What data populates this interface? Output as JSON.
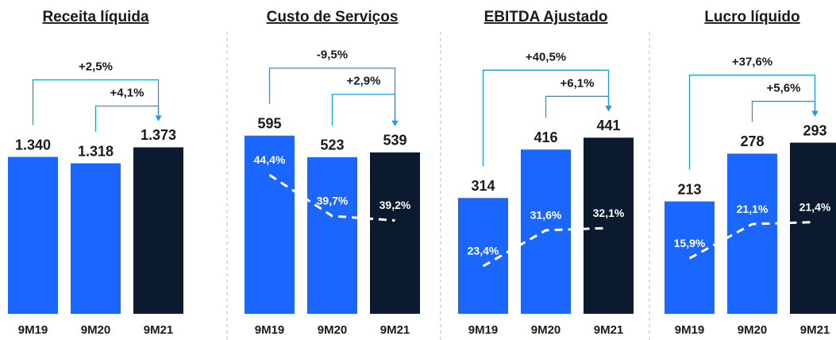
{
  "chart_data": [
    {
      "type": "bar",
      "title": "Receita líquida",
      "categories": [
        "9M19",
        "9M20",
        "9M21"
      ],
      "values": [
        1340,
        1318,
        1373
      ],
      "value_labels": [
        "1.340",
        "1.318",
        "1.373"
      ],
      "colors": [
        "#1a66ff",
        "#1a66ff",
        "#0b1a2e"
      ],
      "ylim": [
        800,
        1470
      ],
      "annotations": [
        "+2,5%",
        "+4,1%"
      ]
    },
    {
      "type": "bar",
      "title": "Custo de Serviços",
      "categories": [
        "9M19",
        "9M20",
        "9M21"
      ],
      "values": [
        595,
        523,
        539
      ],
      "colors": [
        "#1a66ff",
        "#1a66ff",
        "#0b1a2e"
      ],
      "ylim": [
        0,
        650
      ],
      "series": [
        {
          "name": null,
          "color": "#ffffff",
          "axis": "y2",
          "values": [
            44.4,
            39.7,
            39.2
          ],
          "value_labels": [
            "44,4%",
            "39,7%",
            "39,2%"
          ]
        }
      ],
      "y2lim": [
        28.5,
        50.8
      ],
      "annotations": [
        "-9,5%",
        "+2,9%"
      ]
    },
    {
      "type": "bar",
      "title": "EBITDA Ajustado",
      "categories": [
        "9M19",
        "9M20",
        "9M21"
      ],
      "values": [
        314,
        416,
        441
      ],
      "colors": [
        "#1a66ff",
        "#1a66ff",
        "#0b1a2e"
      ],
      "ylim": [
        70,
        480
      ],
      "series": [
        {
          "name": null,
          "color": "#ffffff",
          "axis": "y2",
          "values": [
            23.4,
            31.6,
            32.1
          ],
          "value_labels": [
            "23,4%",
            "31,6%",
            "32,1%"
          ]
        }
      ],
      "y2lim": [
        12.5,
        57
      ],
      "annotations": [
        "+40,5%",
        "+6,1%"
      ]
    },
    {
      "type": "bar",
      "title": "Lucro líquido",
      "categories": [
        "9M19",
        "9M20",
        "9M21"
      ],
      "values": [
        213,
        278,
        293
      ],
      "colors": [
        "#1a66ff",
        "#1a66ff",
        "#0b1a2e"
      ],
      "ylim": [
        60,
        325
      ],
      "series": [
        {
          "name": null,
          "color": "#ffffff",
          "axis": "y2",
          "values": [
            15.9,
            21.1,
            21.4
          ],
          "value_labels": [
            "15,9%",
            "21,1%",
            "21,4%"
          ]
        }
      ],
      "y2lim": [
        7.5,
        37
      ],
      "annotations": [
        "+37,6%",
        "+5,6%"
      ]
    }
  ]
}
